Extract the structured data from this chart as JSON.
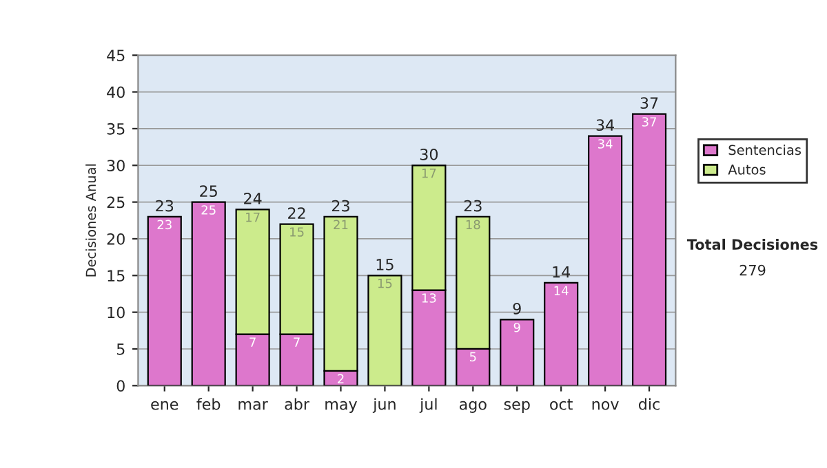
{
  "chart_data": {
    "type": "bar",
    "ylabel": "Decisiones Anual",
    "categories": [
      "ene",
      "feb",
      "mar",
      "abr",
      "may",
      "jun",
      "jul",
      "ago",
      "sep",
      "oct",
      "nov",
      "dic"
    ],
    "stacked": true,
    "series": [
      {
        "name": "Sentencias",
        "color": "#dd77cc",
        "values": [
          23,
          25,
          7,
          7,
          2,
          null,
          13,
          5,
          9,
          14,
          34,
          37
        ],
        "value_labels": [
          "23",
          "25",
          "7",
          "7",
          "2",
          null,
          "13",
          "5",
          "9",
          "14",
          "34",
          "37"
        ]
      },
      {
        "name": "Autos",
        "color": "#cceb8c",
        "values": [
          null,
          null,
          17,
          15,
          21,
          15,
          17,
          18,
          null,
          null,
          null,
          null
        ],
        "value_labels": [
          null,
          null,
          "17",
          "15",
          "21",
          "15",
          "17",
          "18",
          null,
          null,
          null,
          null
        ]
      }
    ],
    "totals": [
      "23",
      "25",
      "24",
      "22",
      "23",
      "15",
      "30",
      "23",
      "9",
      "14",
      "34",
      "37"
    ],
    "ylim": [
      0,
      45
    ],
    "yticks": [
      0,
      5,
      10,
      15,
      20,
      25,
      30,
      35,
      40,
      45
    ],
    "grid": "y",
    "legend": "right",
    "annotations": [
      "Total Decisiones",
      "279"
    ]
  }
}
